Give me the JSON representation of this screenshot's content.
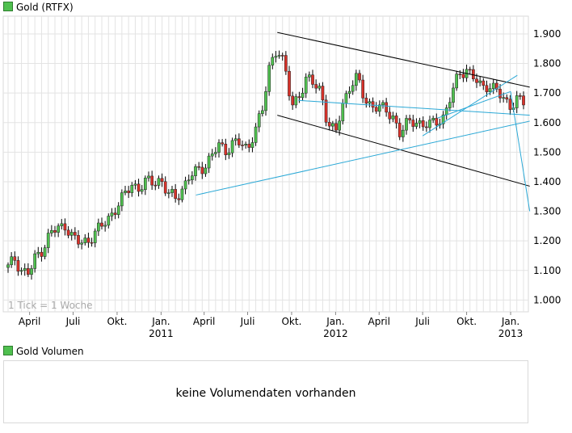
{
  "legend": {
    "main": "Gold (RTFX)",
    "volume": "Gold Volumen"
  },
  "colors": {
    "up": "#4fc04f",
    "down": "#d9322a",
    "wick": "#000000",
    "trend": "#2aa8d6",
    "channel": "#000000",
    "grid": "#e3e3e3"
  },
  "tick_note": "1 Tick = 1 Woche",
  "volume_message": "keine Volumendaten vorhanden",
  "chart_data": {
    "type": "candlestick",
    "title": "Gold (RTFX)",
    "x_range": [
      "2010-02-15",
      "2013-01-28"
    ],
    "ylim": [
      960,
      1960
    ],
    "y_ticks": [
      {
        "v": 1000,
        "label": "1.000"
      },
      {
        "v": 1100,
        "label": "1.100"
      },
      {
        "v": 1200,
        "label": "1.200"
      },
      {
        "v": 1300,
        "label": "1.300"
      },
      {
        "v": 1400,
        "label": "1.400"
      },
      {
        "v": 1500,
        "label": "1.500"
      },
      {
        "v": 1600,
        "label": "1.600"
      },
      {
        "v": 1700,
        "label": "1.700"
      },
      {
        "v": 1800,
        "label": "1.800"
      },
      {
        "v": 1900,
        "label": "1.900"
      }
    ],
    "x_ticks": [
      {
        "d": "2010-04-01",
        "label": "April"
      },
      {
        "d": "2010-07-01",
        "label": "Juli"
      },
      {
        "d": "2010-10-01",
        "label": "Okt."
      },
      {
        "d": "2011-01-01",
        "label": "Jan.",
        "year": "2011"
      },
      {
        "d": "2011-04-01",
        "label": "April"
      },
      {
        "d": "2011-07-01",
        "label": "Juli"
      },
      {
        "d": "2011-10-01",
        "label": "Okt."
      },
      {
        "d": "2012-01-01",
        "label": "Jan.",
        "year": "2012"
      },
      {
        "d": "2012-04-01",
        "label": "April"
      },
      {
        "d": "2012-07-01",
        "label": "Juli"
      },
      {
        "d": "2012-10-01",
        "label": "Okt."
      },
      {
        "d": "2013-01-01",
        "label": "Jan.",
        "year": "2013"
      }
    ],
    "closes": [
      [
        "2010-02-15",
        1110
      ],
      [
        "2010-03-01",
        1140
      ],
      [
        "2010-03-15",
        1100
      ],
      [
        "2010-04-01",
        1090
      ],
      [
        "2010-04-15",
        1150
      ],
      [
        "2010-05-01",
        1180
      ],
      [
        "2010-05-15",
        1230
      ],
      [
        "2010-06-01",
        1240
      ],
      [
        "2010-06-15",
        1255
      ],
      [
        "2010-07-01",
        1210
      ],
      [
        "2010-07-15",
        1190
      ],
      [
        "2010-08-01",
        1200
      ],
      [
        "2010-08-15",
        1230
      ],
      [
        "2010-09-01",
        1250
      ],
      [
        "2010-09-15",
        1280
      ],
      [
        "2010-10-01",
        1320
      ],
      [
        "2010-10-15",
        1350
      ],
      [
        "2010-11-01",
        1390
      ],
      [
        "2010-11-15",
        1380
      ],
      [
        "2010-12-01",
        1400
      ],
      [
        "2010-12-15",
        1395
      ],
      [
        "2011-01-01",
        1410
      ],
      [
        "2011-01-15",
        1360
      ],
      [
        "2011-02-01",
        1340
      ],
      [
        "2011-02-15",
        1380
      ],
      [
        "2011-03-01",
        1420
      ],
      [
        "2011-03-15",
        1430
      ],
      [
        "2011-04-01",
        1450
      ],
      [
        "2011-04-15",
        1490
      ],
      [
        "2011-05-01",
        1520
      ],
      [
        "2011-05-15",
        1500
      ],
      [
        "2011-06-01",
        1540
      ],
      [
        "2011-06-15",
        1530
      ],
      [
        "2011-07-01",
        1500
      ],
      [
        "2011-07-15",
        1580
      ],
      [
        "2011-08-01",
        1640
      ],
      [
        "2011-08-15",
        1780
      ],
      [
        "2011-09-01",
        1860
      ],
      [
        "2011-09-15",
        1800
      ],
      [
        "2011-10-01",
        1650
      ],
      [
        "2011-10-15",
        1690
      ],
      [
        "2011-11-01",
        1750
      ],
      [
        "2011-11-15",
        1730
      ],
      [
        "2011-12-01",
        1710
      ],
      [
        "2011-12-15",
        1600
      ],
      [
        "2012-01-01",
        1560
      ],
      [
        "2012-01-15",
        1660
      ],
      [
        "2012-02-01",
        1730
      ],
      [
        "2012-02-15",
        1750
      ],
      [
        "2012-03-01",
        1680
      ],
      [
        "2012-03-15",
        1660
      ],
      [
        "2012-04-01",
        1650
      ],
      [
        "2012-04-15",
        1640
      ],
      [
        "2012-05-01",
        1620
      ],
      [
        "2012-05-15",
        1560
      ],
      [
        "2012-06-01",
        1600
      ],
      [
        "2012-06-15",
        1610
      ],
      [
        "2012-07-01",
        1590
      ],
      [
        "2012-07-15",
        1590
      ],
      [
        "2012-08-01",
        1610
      ],
      [
        "2012-08-15",
        1620
      ],
      [
        "2012-09-01",
        1700
      ],
      [
        "2012-09-15",
        1770
      ],
      [
        "2012-10-01",
        1780
      ],
      [
        "2012-10-15",
        1750
      ],
      [
        "2012-11-01",
        1720
      ],
      [
        "2012-11-15",
        1730
      ],
      [
        "2012-12-01",
        1710
      ],
      [
        "2012-12-15",
        1680
      ],
      [
        "2013-01-01",
        1660
      ],
      [
        "2013-01-15",
        1680
      ],
      [
        "2013-01-28",
        1665
      ]
    ],
    "trendlines": [
      {
        "color": "channel",
        "from": [
          "2011-09-01",
          1905
        ],
        "to": [
          "2013-02-10",
          1720
        ]
      },
      {
        "color": "channel",
        "from": [
          "2011-09-01",
          1625
        ],
        "to": [
          "2013-02-10",
          1385
        ]
      },
      {
        "color": "trend",
        "from": [
          "2011-03-15",
          1355
        ],
        "to": [
          "2013-02-10",
          1605
        ]
      },
      {
        "color": "trend",
        "from": [
          "2011-10-15",
          1675
        ],
        "to": [
          "2013-02-10",
          1625
        ]
      },
      {
        "color": "trend",
        "from": [
          "2012-07-01",
          1555
        ],
        "to": [
          "2013-01-15",
          1760
        ]
      },
      {
        "color": "trend",
        "from": [
          "2012-08-01",
          1615
        ],
        "to": [
          "2013-01-01",
          1705
        ]
      },
      {
        "color": "trend",
        "from": [
          "2013-01-01",
          1705
        ],
        "to": [
          "2013-02-10",
          1300
        ]
      }
    ]
  }
}
